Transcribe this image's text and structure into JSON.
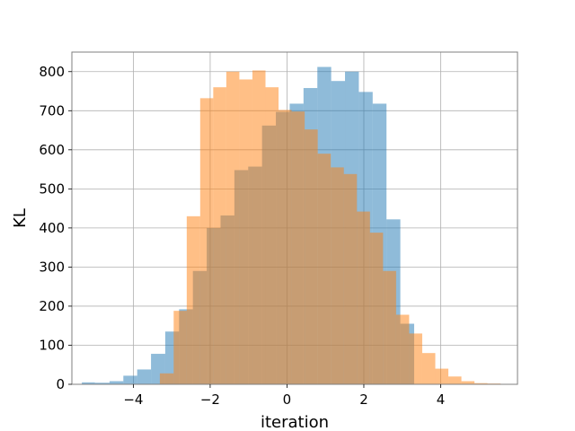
{
  "chart_data": {
    "type": "bar",
    "xlabel": "iteration",
    "ylabel": "KL",
    "xlim": [
      -5.6,
      6.0
    ],
    "ylim": [
      0,
      850
    ],
    "grid": true,
    "x_ticks": [
      -4,
      -2,
      0,
      2,
      4
    ],
    "y_ticks": [
      0,
      100,
      200,
      300,
      400,
      500,
      600,
      700,
      800
    ],
    "colors": {
      "series_1": "#1f77b4",
      "series_2": "#ff7f0e"
    },
    "series": [
      {
        "bin_edges": [
          -5.34,
          -5.0,
          -4.62,
          -4.26,
          -3.9,
          -3.54,
          -3.17,
          -2.81,
          -2.45,
          -2.09,
          -1.73,
          -1.37,
          -1.01,
          -0.65,
          -0.29,
          0.07,
          0.43,
          0.79,
          1.15,
          1.51,
          1.87,
          2.23,
          2.59,
          2.95,
          3.31
        ],
        "counts": [
          5,
          4,
          8,
          22,
          38,
          78,
          135,
          192,
          290,
          400,
          432,
          548,
          557,
          662,
          697,
          718,
          758,
          812,
          776,
          800,
          748,
          718,
          422,
          155
        ]
      },
      {
        "bin_edges": [
          -3.31,
          -2.95,
          -2.61,
          -2.26,
          -1.92,
          -1.58,
          -1.24,
          -0.9,
          -0.56,
          -0.22,
          0.12,
          0.46,
          0.8,
          1.14,
          1.48,
          1.82,
          2.16,
          2.5,
          2.84,
          3.18,
          3.52,
          3.86,
          4.2,
          4.54,
          4.88,
          5.22,
          5.56
        ],
        "counts": [
          28,
          188,
          430,
          732,
          760,
          800,
          780,
          803,
          760,
          702,
          698,
          652,
          590,
          555,
          538,
          442,
          388,
          290,
          178,
          130,
          80,
          40,
          20,
          8,
          3,
          2
        ]
      }
    ]
  }
}
